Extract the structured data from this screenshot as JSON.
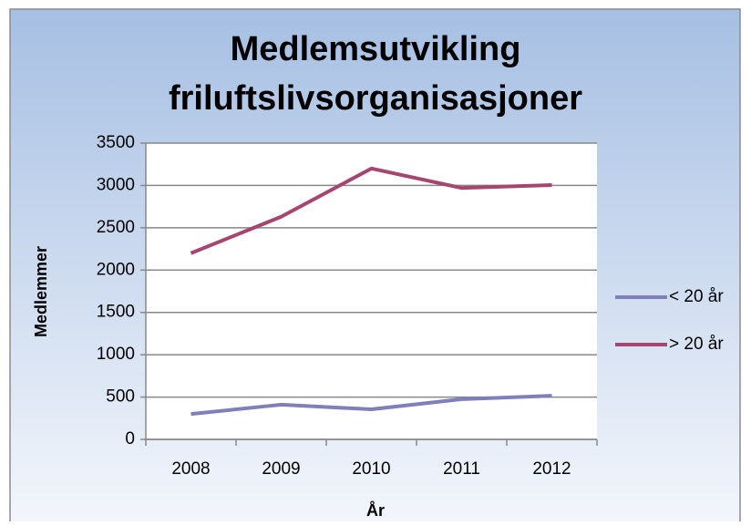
{
  "chart_data": {
    "type": "line",
    "title": [
      "Medlemsutvikling",
      "friluftslivsorganisasjoner"
    ],
    "x_label": "År",
    "y_label": "Medlemmer",
    "categories": [
      "2008",
      "2009",
      "2010",
      "2011",
      "2012"
    ],
    "series": [
      {
        "name": "< 20 år",
        "color": "#7f7fba",
        "values": [
          300,
          410,
          355,
          475,
          515
        ]
      },
      {
        "name": "> 20 år",
        "color": "#a6456f",
        "values": [
          2200,
          2630,
          3200,
          2970,
          3005
        ]
      }
    ],
    "ylim": [
      0,
      3500
    ],
    "yticks": [
      0,
      500,
      1000,
      1500,
      2000,
      2500,
      3000,
      3500
    ],
    "grid": true,
    "legend": "right"
  }
}
